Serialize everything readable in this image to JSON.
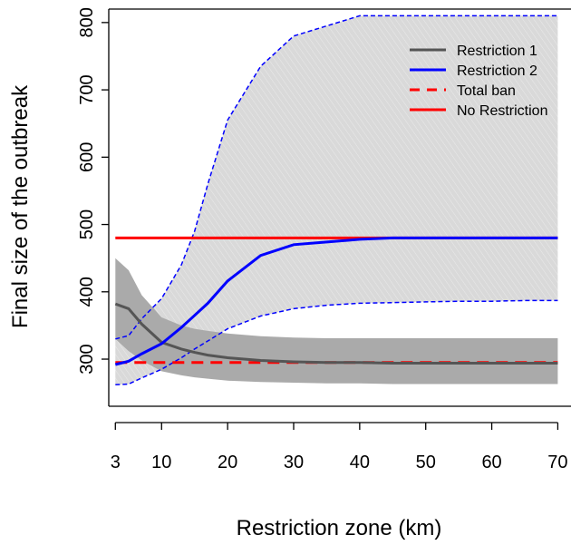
{
  "chart_data": {
    "type": "line",
    "title": "",
    "xlabel": "Restriction zone (km)",
    "ylabel": "Final size of the outbreak",
    "xlim": [
      2,
      72
    ],
    "ylim": [
      230,
      820
    ],
    "xticks": [
      3,
      10,
      20,
      30,
      40,
      50,
      60,
      70
    ],
    "yticks": [
      300,
      400,
      500,
      600,
      700,
      800
    ],
    "grid": false,
    "legend_position": "top-right",
    "x": [
      3,
      5,
      7,
      10,
      13,
      15,
      17,
      20,
      25,
      30,
      35,
      40,
      45,
      50,
      55,
      60,
      65,
      70
    ],
    "series": [
      {
        "name": "Restriction 1",
        "color": "#555555",
        "linestyle": "solid",
        "values": [
          382,
          375,
          352,
          325,
          315,
          310,
          306,
          302,
          298,
          296,
          295,
          295,
          294,
          294,
          294,
          294,
          294,
          294
        ],
        "band_lower": [
          330,
          312,
          298,
          282,
          276,
          273,
          271,
          268,
          266,
          265,
          264,
          264,
          263,
          263,
          263,
          263,
          263,
          263
        ],
        "band_upper": [
          450,
          432,
          395,
          362,
          350,
          345,
          342,
          338,
          334,
          332,
          331,
          331,
          331,
          331,
          331,
          331,
          331,
          331
        ],
        "band_color": "#aaaaaa"
      },
      {
        "name": "Restriction 2",
        "color": "#0000ff",
        "linestyle": "solid",
        "values": [
          292,
          297,
          308,
          323,
          347,
          365,
          383,
          416,
          454,
          470,
          474,
          478,
          480,
          480,
          480,
          480,
          480,
          480
        ],
        "band_lower": [
          262,
          263,
          272,
          285,
          302,
          315,
          327,
          345,
          364,
          375,
          380,
          383,
          384,
          385,
          386,
          386,
          387,
          387
        ],
        "band_upper": [
          330,
          335,
          360,
          390,
          440,
          490,
          560,
          655,
          735,
          780,
          795,
          810,
          810,
          810,
          810,
          810,
          810,
          810
        ],
        "band_color": "#d9d9d9",
        "band_edge_color": "#0000ff",
        "band_edge_style": "dashed"
      },
      {
        "name": "Total ban",
        "color": "#ff0000",
        "linestyle": "dashed",
        "values": [
          295,
          295,
          295,
          295,
          295,
          295,
          295,
          295,
          295,
          295,
          295,
          295,
          295,
          295,
          295,
          295,
          295,
          295
        ]
      },
      {
        "name": "No Restriction",
        "color": "#ff0000",
        "linestyle": "solid",
        "values": [
          480,
          480,
          480,
          480,
          480,
          480,
          480,
          480,
          480,
          480,
          480,
          480,
          480,
          480,
          480,
          480,
          480,
          480
        ]
      }
    ]
  }
}
